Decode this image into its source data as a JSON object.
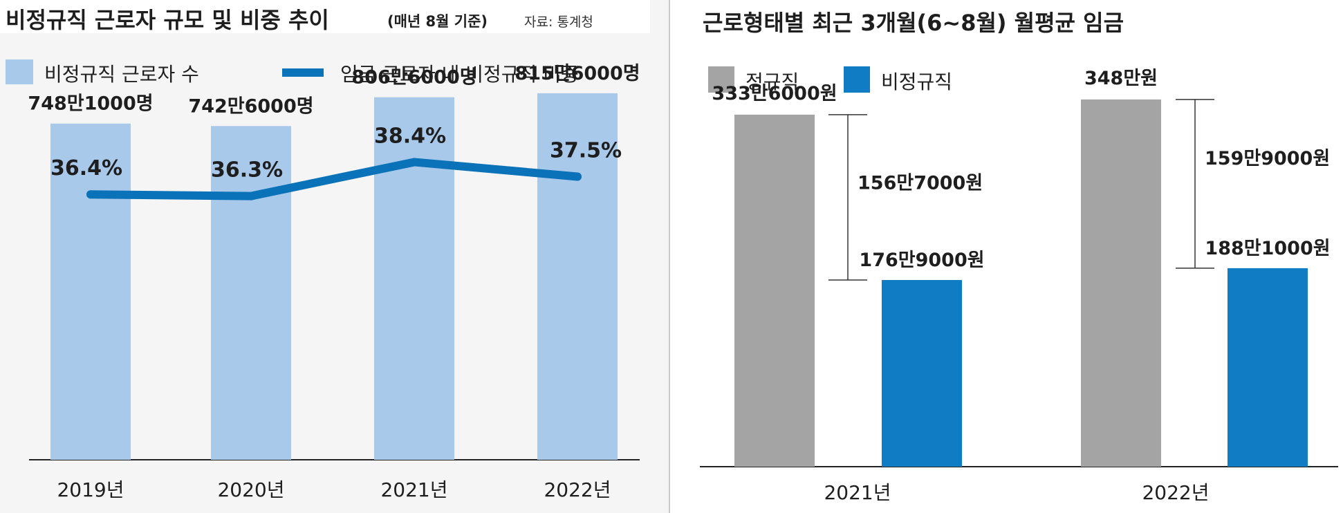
{
  "colors": {
    "light_bar": "#a9c9ea",
    "blue": "#0f7cc4",
    "gray": "#a4a4a4",
    "line": "#0a72b8",
    "panel_bg": "#f5f5f5",
    "text": "#1e1e1e"
  },
  "chart_data": [
    {
      "type": "bar+line",
      "title": "비정규직 근로자 규모 및 비중 추이",
      "subtitle": "(매년 8월 기준)",
      "source": "자료: 통계청",
      "legend": [
        {
          "label": "비정규직 근로자 수",
          "shape": "box",
          "color": "#a9c9ea"
        },
        {
          "label": "임금 근로자 내 비정규직 비중",
          "shape": "line",
          "color": "#0a72b8"
        }
      ],
      "categories": [
        "2019년",
        "2020년",
        "2021년",
        "2022년"
      ],
      "series": [
        {
          "name": "비정규직 근로자 수",
          "unit": "만명",
          "values": [
            748.1,
            742.6,
            806.6,
            815.6
          ],
          "labels": [
            "748만1000명",
            "742만6000명",
            "806만6000명",
            "815만6000명"
          ]
        },
        {
          "name": "임금 근로자 내 비정규직 비중",
          "unit": "%",
          "values": [
            36.4,
            36.3,
            38.4,
            37.5
          ],
          "labels": [
            "36.4%",
            "36.3%",
            "38.4%",
            "37.5%"
          ]
        }
      ],
      "ylim_bars": [
        0,
        900
      ],
      "ylim_line": [
        20,
        45
      ]
    },
    {
      "type": "bar",
      "title": "근로형태별 최근 3개월(6~8월) 월평균 임금",
      "legend": [
        {
          "label": "정규직",
          "color": "#a4a4a4"
        },
        {
          "label": "비정규직",
          "color": "#0f7cc4"
        }
      ],
      "categories": [
        "2021년",
        "2022년"
      ],
      "series": [
        {
          "name": "정규직",
          "unit": "만원",
          "values": [
            333.6,
            348
          ],
          "labels": [
            "333만6000원",
            "348만원"
          ]
        },
        {
          "name": "비정규직",
          "unit": "만원",
          "values": [
            176.9,
            188.1
          ],
          "labels": [
            "176만9000원",
            "188만1000원"
          ]
        }
      ],
      "gaps": {
        "values": [
          156.7,
          159.9
        ],
        "labels": [
          "156만7000원",
          "159만9000원"
        ]
      },
      "ylim": [
        0,
        380
      ]
    }
  ]
}
